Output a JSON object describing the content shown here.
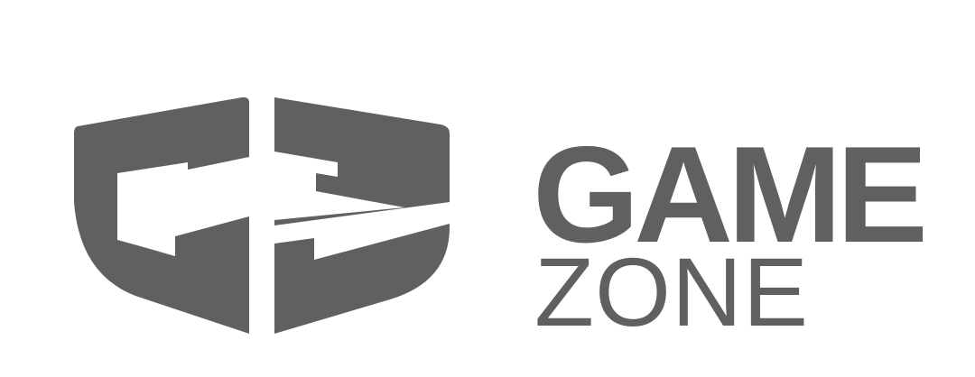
{
  "brand": {
    "word_top": "GAME",
    "word_bottom": "ZONE",
    "color": "#606060",
    "background": "#ffffff",
    "emblem_icon": "gz-monogram-icon"
  }
}
